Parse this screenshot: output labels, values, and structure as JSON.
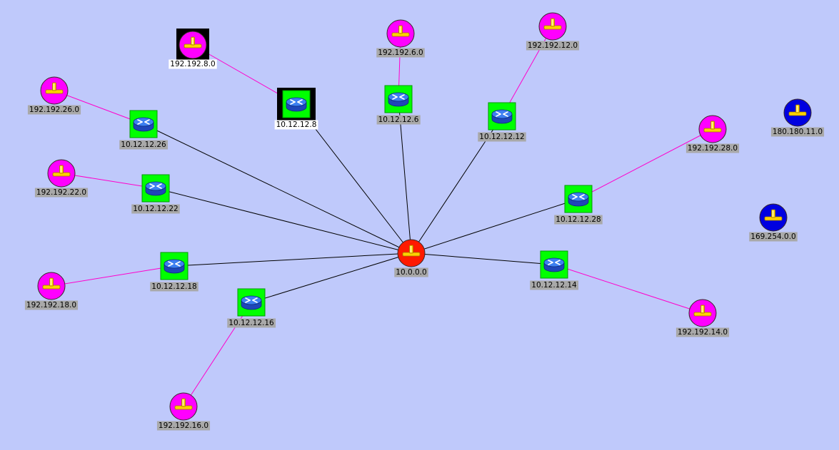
{
  "palette": {
    "background": "#bfc9fb",
    "backbone_link": "#000000",
    "subnet_link": "#ff00cc",
    "router_bg": "#00ff00",
    "router_body": "#2b5fd9",
    "selected_bg": "#000000",
    "hub_fill": "#ff1a00",
    "subnet_fill": "#ff00ff",
    "unlinked_fill": "#0000e0",
    "label_bg": "#a9a9a9",
    "label_selected_bg": "#ffffff",
    "connector": "#ffd200"
  },
  "hub": {
    "id": "hub",
    "label": "10.0.0.0",
    "icon": "network-hub-icon"
  },
  "routers": [
    {
      "id": "r26",
      "label": "10.12.12.26",
      "icon": "router-icon"
    },
    {
      "id": "r8",
      "label": "10.12.12.8",
      "icon": "router-icon",
      "selected": true
    },
    {
      "id": "r6",
      "label": "10.12.12.6",
      "icon": "router-icon"
    },
    {
      "id": "r12",
      "label": "10.12.12.12",
      "icon": "router-icon"
    },
    {
      "id": "r22",
      "label": "10.12.12.22",
      "icon": "router-icon"
    },
    {
      "id": "r28",
      "label": "10.12.12.28",
      "icon": "router-icon"
    },
    {
      "id": "r18",
      "label": "10.12.12.18",
      "icon": "router-icon"
    },
    {
      "id": "r14",
      "label": "10.12.12.14",
      "icon": "router-icon"
    },
    {
      "id": "r16",
      "label": "10.12.12.16",
      "icon": "router-icon"
    }
  ],
  "subnets": [
    {
      "id": "s8",
      "label": "192.192.8.0",
      "router": "r8",
      "icon": "subnet-icon",
      "selected": true
    },
    {
      "id": "s6",
      "label": "192.192.6.0",
      "router": "r6",
      "icon": "subnet-icon"
    },
    {
      "id": "s12",
      "label": "192.192.12.0",
      "router": "r12",
      "icon": "subnet-icon"
    },
    {
      "id": "s26",
      "label": "192.192.26.0",
      "router": "r26",
      "icon": "subnet-icon"
    },
    {
      "id": "s22",
      "label": "192.192.22.0",
      "router": "r22",
      "icon": "subnet-icon"
    },
    {
      "id": "s28",
      "label": "192.192.28.0",
      "router": "r28",
      "icon": "subnet-icon"
    },
    {
      "id": "s18",
      "label": "192.192.18.0",
      "router": "r18",
      "icon": "subnet-icon"
    },
    {
      "id": "s14",
      "label": "192.192.14.0",
      "router": "r14",
      "icon": "subnet-icon"
    },
    {
      "id": "s16",
      "label": "192.192.16.0",
      "router": "r16",
      "icon": "subnet-icon"
    }
  ],
  "isolated": [
    {
      "id": "i180",
      "label": "180.180.11.0",
      "icon": "subnet-icon"
    },
    {
      "id": "i169",
      "label": "169.254.0.0",
      "icon": "subnet-icon"
    }
  ]
}
